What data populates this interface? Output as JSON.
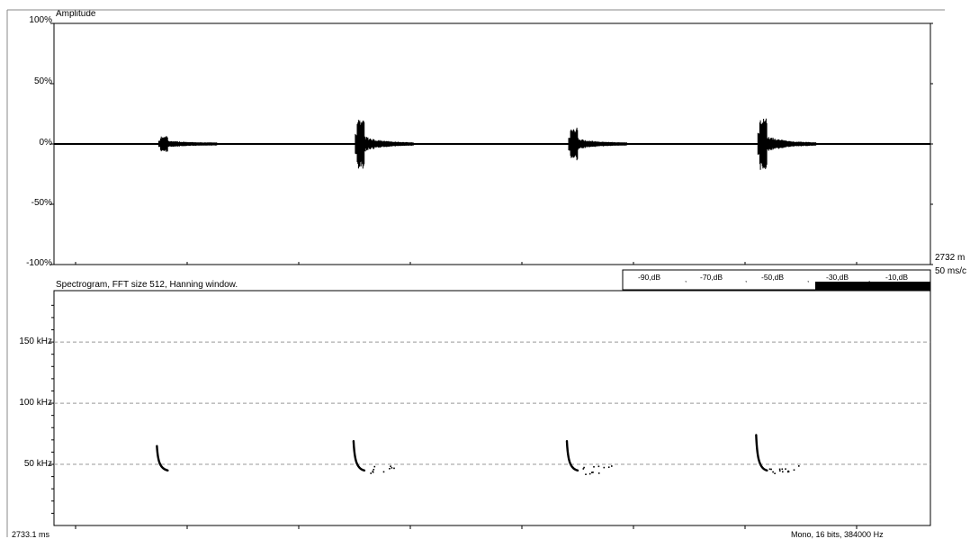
{
  "waveform": {
    "title": "Amplitude",
    "y_ticks": [
      "100%",
      "50%",
      "0%",
      "-50%",
      "-100%"
    ]
  },
  "spectrogram": {
    "title": "Spectrogram, FFT size 512, Hanning window.",
    "y_ticks": [
      "150 kHz",
      "100 kHz",
      "50 kHz"
    ]
  },
  "db_legend": [
    "-90,dB",
    "-70,dB",
    "-50,dB",
    "-30,dB",
    "-10,dB"
  ],
  "side_info": {
    "duration": "2732 m",
    "scale": "50 ms/c"
  },
  "status": {
    "left": "2733.1 ms",
    "right": "Mono, 16 bits, 384000 Hz"
  },
  "chart_data": [
    {
      "type": "line",
      "title": "Amplitude",
      "ylim": [
        -100,
        100
      ],
      "y_unit": "%",
      "x_unit": "ms",
      "xlim": [
        0,
        2732
      ],
      "grid": false,
      "bursts": [
        {
          "t": 332,
          "peak": 7
        },
        {
          "t": 945,
          "peak": 21
        },
        {
          "t": 1610,
          "peak": 14
        },
        {
          "t": 2200,
          "peak": 23
        }
      ]
    },
    {
      "type": "heatmap",
      "title": "Spectrogram, FFT size 512, Hanning window.",
      "ylim": [
        0,
        192
      ],
      "y_unit": "kHz",
      "x_unit": "ms",
      "xlim": [
        0,
        2732
      ],
      "grid": true,
      "calls": [
        {
          "t": 332,
          "f_start": 65,
          "f_end": 45
        },
        {
          "t": 945,
          "f_start": 69,
          "f_end": 45
        },
        {
          "t": 1610,
          "f_start": 69,
          "f_end": 45
        },
        {
          "t": 2200,
          "f_start": 74,
          "f_end": 45
        }
      ]
    }
  ]
}
